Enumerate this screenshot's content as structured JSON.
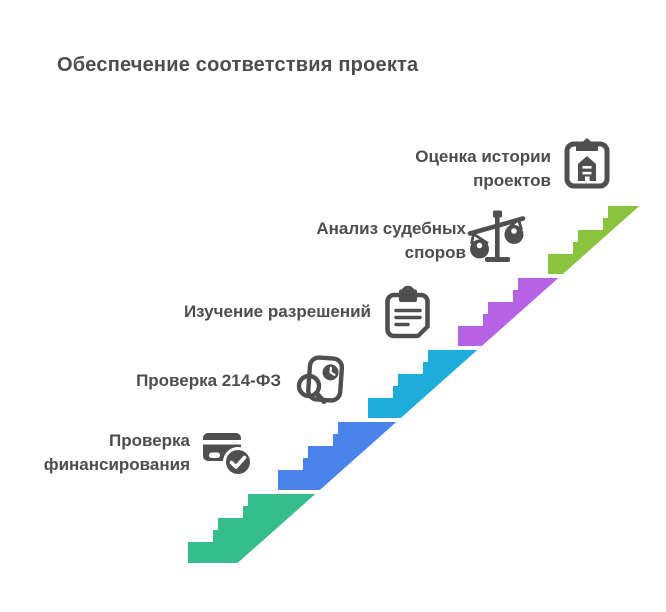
{
  "title": "Обеспечение соответствия проекта",
  "palette": {
    "text": "#4d4d4d",
    "icon": "#4f4f4f",
    "background": "#ffffff",
    "outline": "#ffffff"
  },
  "steps": [
    {
      "label": "Проверка финансирования",
      "lines": [
        "Проверка",
        "финансирования"
      ],
      "icon": "card-check-icon",
      "color": "#35be8c"
    },
    {
      "label": "Проверка 214-ФЗ",
      "lines": [
        "Проверка 214-ФЗ"
      ],
      "icon": "document-search-icon",
      "color": "#4a83e9"
    },
    {
      "label": "Изучение разрешений",
      "lines": [
        "Изучение разрешений"
      ],
      "icon": "clipboard-lock-icon",
      "color": "#1eaddb"
    },
    {
      "label": "Анализ судебных споров",
      "lines": [
        "Анализ судебных",
        "споров"
      ],
      "icon": "scales-icon",
      "color": "#b562e5"
    },
    {
      "label": "Оценка истории проектов",
      "lines": [
        "Оценка истории",
        "проектов"
      ],
      "icon": "clipboard-building-icon",
      "color": "#8ac43e"
    }
  ]
}
